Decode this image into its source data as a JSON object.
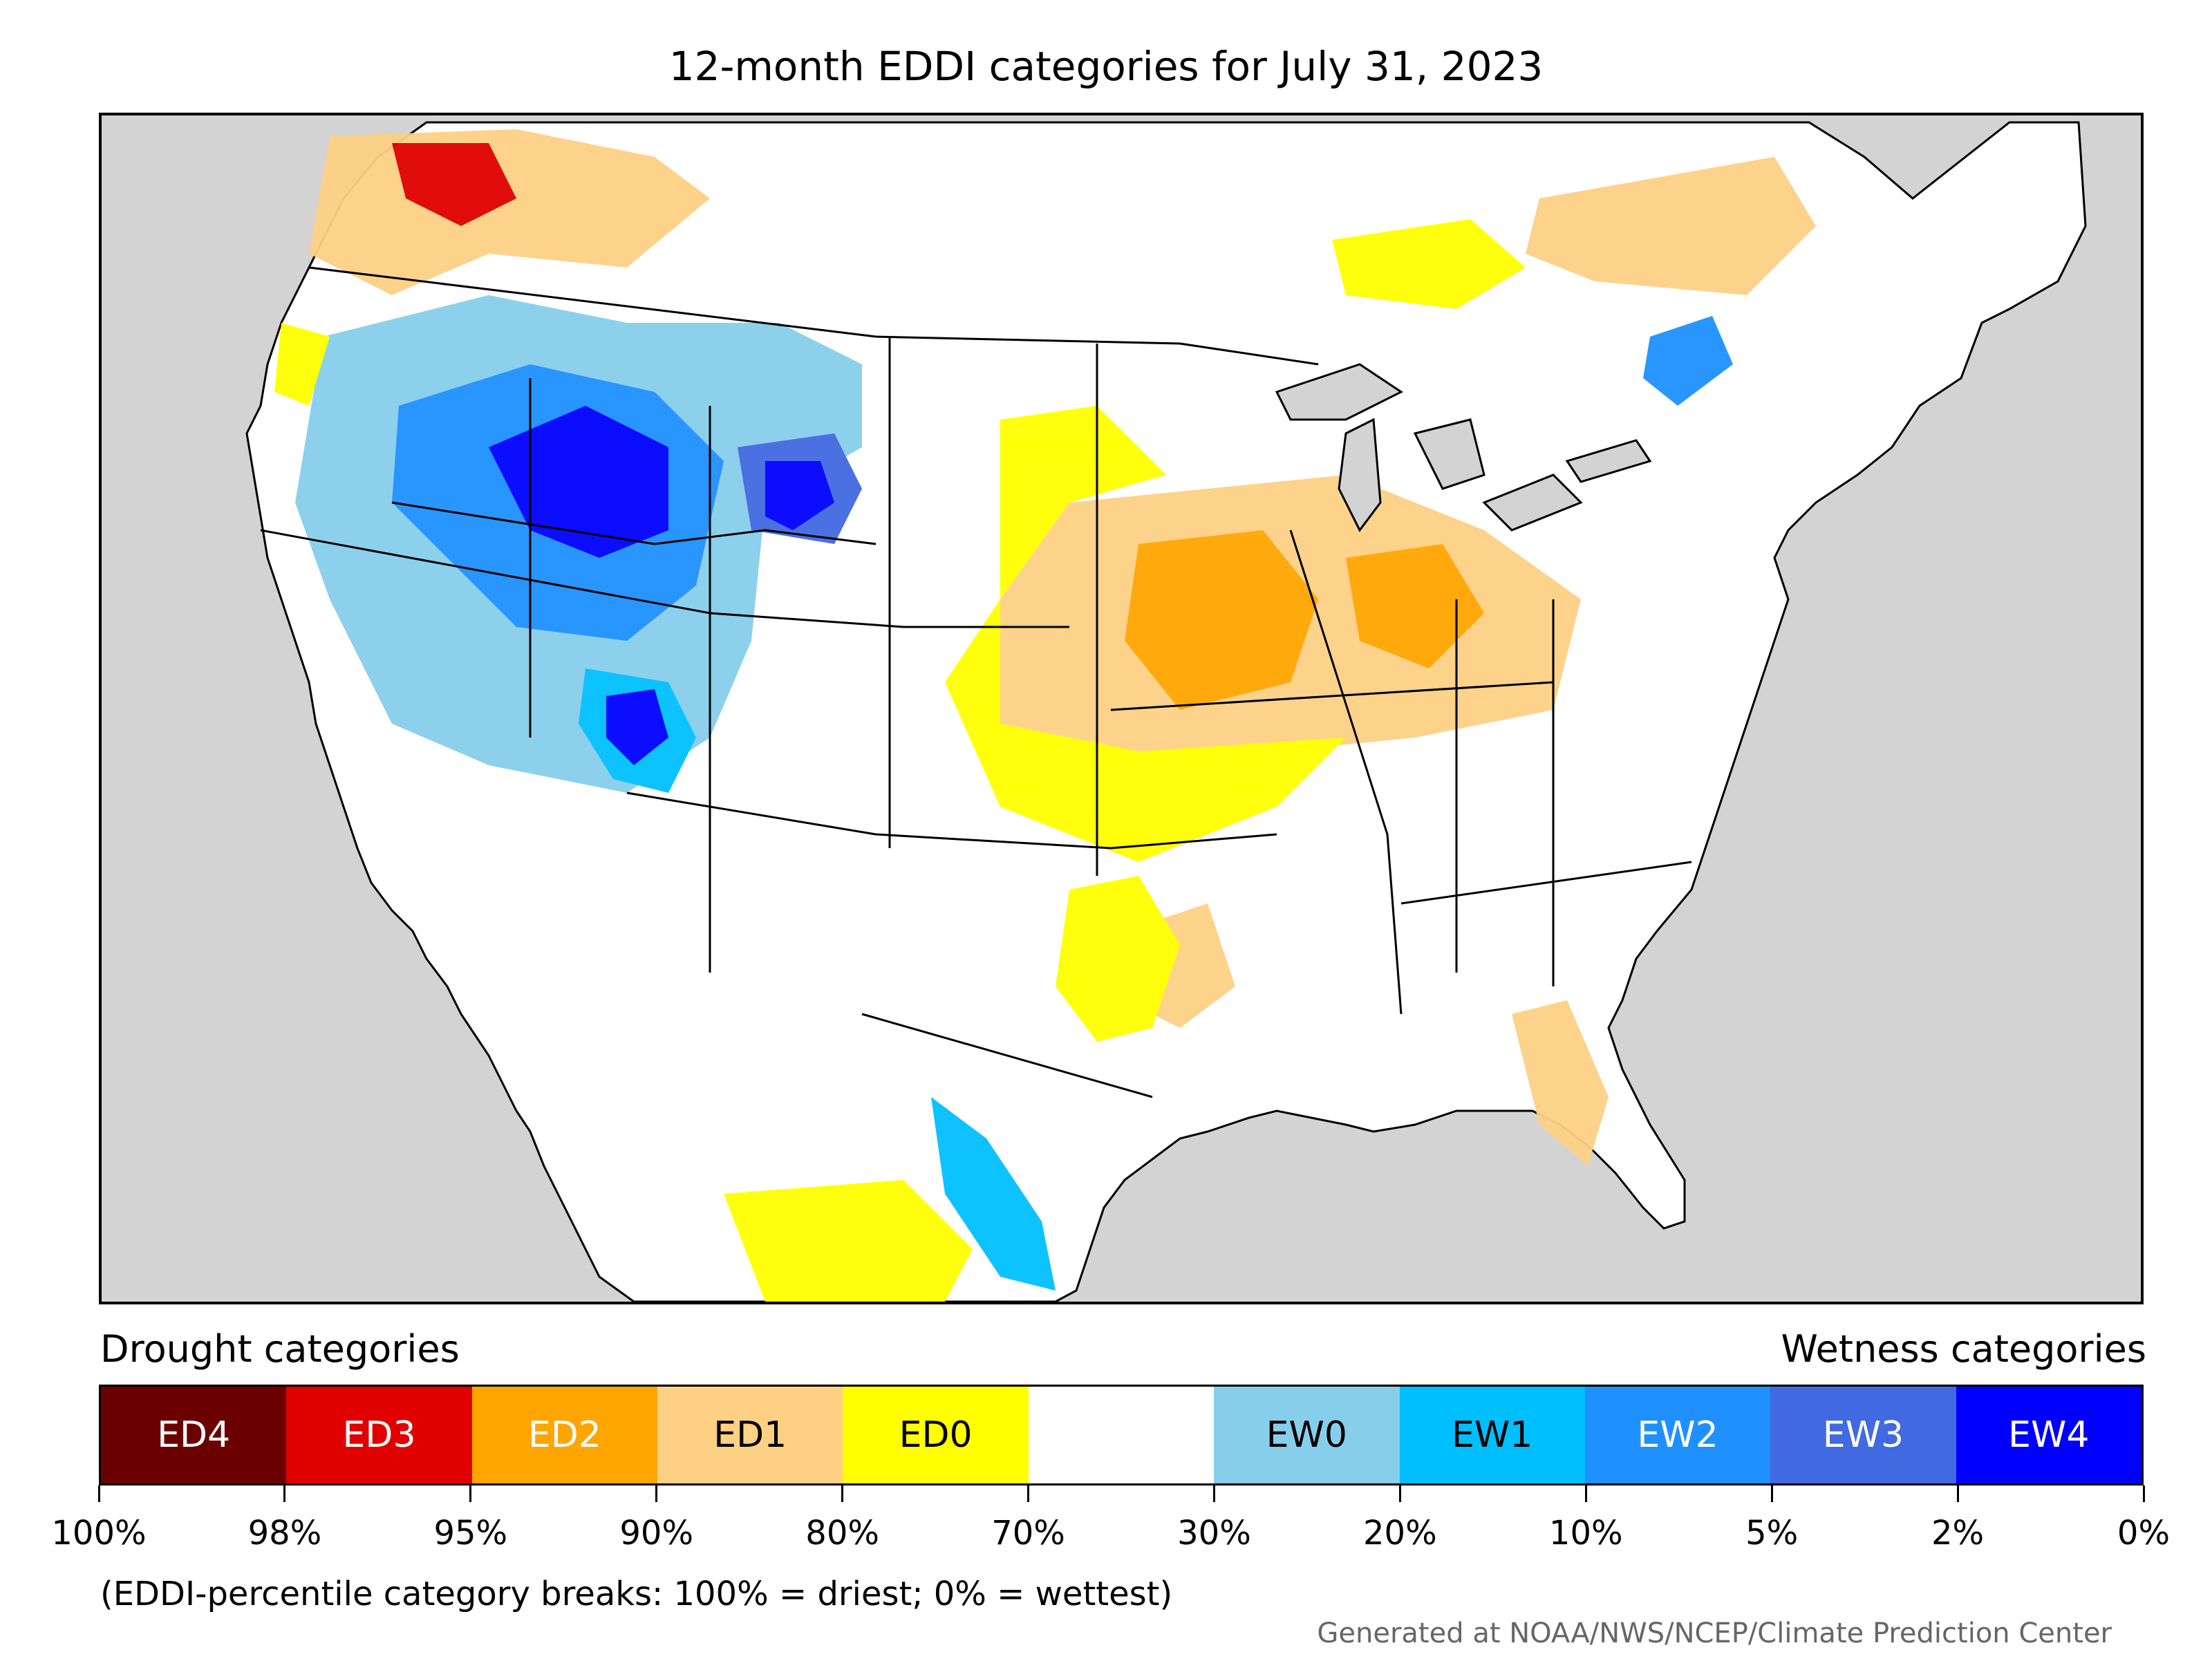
{
  "title": "12-month EDDI categories for July 31, 2023",
  "map": {
    "background_color": "#d3d3d3",
    "land_color": "#ffffff",
    "boundary_color": "#000000",
    "regions": "contiguous United States with southern Canada and northern Mexico; state and province boundaries"
  },
  "legend": {
    "drought_label": "Drought categories",
    "wetness_label": "Wetness categories",
    "categories": [
      {
        "name": "ED4",
        "color": "#6b0000",
        "text_color": "#ffffff"
      },
      {
        "name": "ED3",
        "color": "#e00000",
        "text_color": "#ffffff"
      },
      {
        "name": "ED2",
        "color": "#ffa500",
        "text_color": "#ffffff"
      },
      {
        "name": "ED1",
        "color": "#fdd084",
        "text_color": "#000000"
      },
      {
        "name": "ED0",
        "color": "#ffff00",
        "text_color": "#000000"
      },
      {
        "name": "",
        "color": "#ffffff",
        "text_color": "#000000"
      },
      {
        "name": "EW0",
        "color": "#87ceeb",
        "text_color": "#000000"
      },
      {
        "name": "EW1",
        "color": "#00bfff",
        "text_color": "#000000"
      },
      {
        "name": "EW2",
        "color": "#1e90ff",
        "text_color": "#ffffff"
      },
      {
        "name": "EW3",
        "color": "#4169e1",
        "text_color": "#ffffff"
      },
      {
        "name": "EW4",
        "color": "#0000ff",
        "text_color": "#ffffff"
      }
    ],
    "tick_labels": [
      "100%",
      "98%",
      "95%",
      "90%",
      "80%",
      "70%",
      "30%",
      "20%",
      "10%",
      "5%",
      "2%",
      "0%"
    ]
  },
  "note": "(EDDI-percentile category breaks: 100% = driest; 0% = wettest)",
  "credit": "Generated at NOAA/NWS/NCEP/Climate Prediction Center"
}
